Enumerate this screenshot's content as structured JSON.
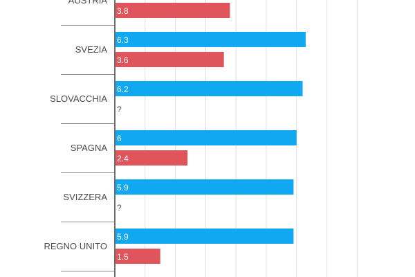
{
  "chart_data": {
    "type": "bar",
    "orientation": "horizontal",
    "categories": [
      "AUSTRIA",
      "SVEZIA",
      "SLOVACCHIA",
      "SPAGNA",
      "SVIZZERA",
      "REGNO UNITO"
    ],
    "series": [
      {
        "values": [
          null,
          6.3,
          6.2,
          6.0,
          5.9,
          5.9
        ],
        "labels": [
          "",
          "6.3",
          "6.2",
          "6",
          "5.9",
          "5.9"
        ],
        "color": "#10a9f1"
      },
      {
        "values": [
          3.8,
          3.6,
          null,
          2.4,
          null,
          1.5
        ],
        "labels": [
          "3.8",
          "3.6",
          "?",
          "2.4",
          "?",
          "1.5"
        ],
        "color": "#e0545b"
      }
    ],
    "xlim": [
      0,
      8
    ],
    "grid": true,
    "colors": {
      "grid": "#e0e0e0",
      "axis": "#6b6b6b",
      "separator": "#888888"
    }
  }
}
